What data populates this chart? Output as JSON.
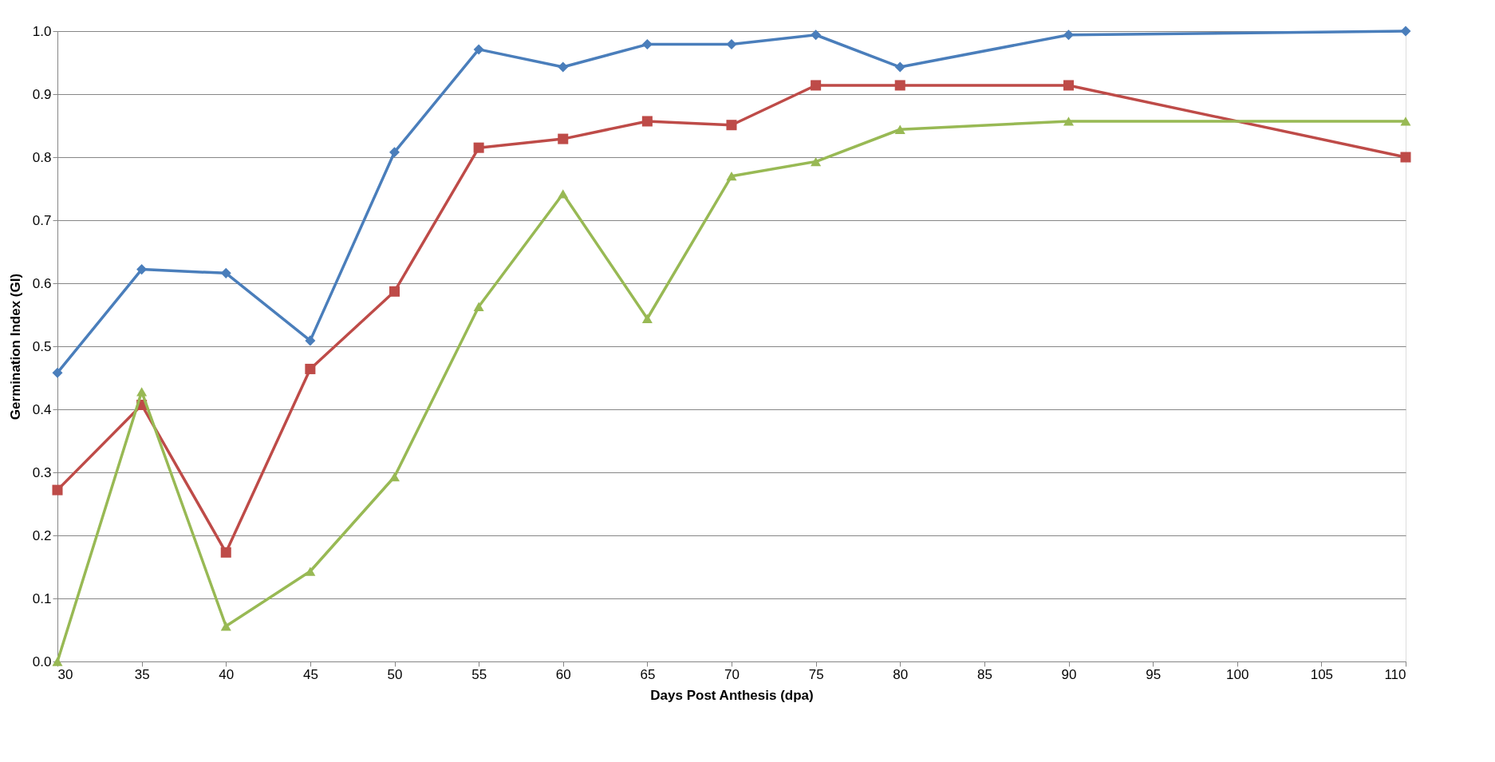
{
  "chart_data": {
    "type": "line",
    "xlabel": "Days Post Anthesis (dpa)",
    "ylabel": "Germination Index (GI)",
    "x": [
      30,
      35,
      40,
      45,
      50,
      55,
      60,
      65,
      70,
      75,
      80,
      90,
      110
    ],
    "series": [
      {
        "color": "#4a7ebb",
        "marker": "diamond",
        "values": [
          0.458,
          0.622,
          0.616,
          0.509,
          0.808,
          0.971,
          0.943,
          0.979,
          0.979,
          0.994,
          0.943,
          0.994,
          1.0
        ]
      },
      {
        "color": "#be4b48",
        "marker": "square",
        "values": [
          0.272,
          0.407,
          0.173,
          0.464,
          0.587,
          0.815,
          0.829,
          0.857,
          0.851,
          0.914,
          0.914,
          0.914,
          0.8
        ]
      },
      {
        "color": "#98b954",
        "marker": "triangle",
        "values": [
          0.0,
          0.428,
          0.056,
          0.143,
          0.293,
          0.563,
          0.742,
          0.544,
          0.77,
          0.793,
          0.844,
          0.857,
          0.857
        ]
      }
    ],
    "xlim": [
      30,
      110
    ],
    "xticks": [
      30,
      35,
      40,
      45,
      50,
      55,
      60,
      65,
      70,
      75,
      80,
      85,
      90,
      95,
      100,
      105,
      110
    ],
    "ylim": [
      0.0,
      1.0
    ],
    "yticks": [
      {
        "value": 0.0,
        "label": "0.0"
      },
      0.1,
      0.2,
      0.3,
      0.4,
      0.5,
      0.6,
      0.7,
      0.8,
      0.9,
      {
        "value": 1.0,
        "label": "1.0"
      }
    ],
    "grid": "y",
    "line_style": "solid"
  }
}
